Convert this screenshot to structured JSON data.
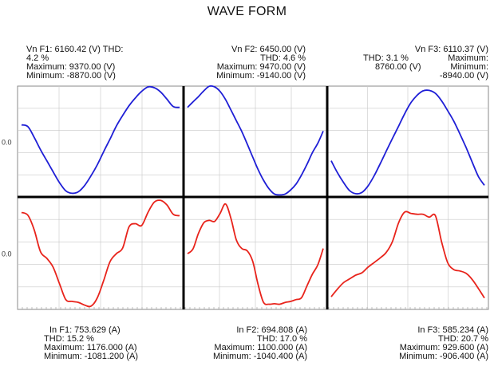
{
  "title": "WAVE FORM",
  "voltage": [
    {
      "label_line1": "Vn F1: 6160.42 (V) THD:",
      "label_line2": "4.2 %",
      "max_line": "Maximum: 9370.00 (V)",
      "min_line": "Minimum: -8870.00 (V)"
    },
    {
      "label_line1": "Vn F2: 6450.00 (V)",
      "label_line2": "THD: 4.6 %",
      "max_line": "Maximum: 9470.00 (V)",
      "min_line": "Minimum: -9140.00 (V)"
    },
    {
      "label_line1": "Vn F3: 6110.37 (V)",
      "label_line2a": "THD: 3.1 %",
      "label_line2b": "Maximum:",
      "label_line3a": "8760.00 (V)",
      "label_line3b": "Minimum:",
      "min_line": "-8940.00 (V)"
    }
  ],
  "current": [
    {
      "label_line1": "In F1: 753.629 (A)",
      "label_line2": "THD: 15.2 %",
      "max_line": "Maximum: 1176.000 (A)",
      "min_line": "Minimum: -1081.200 (A)"
    },
    {
      "label_line1": "In F2: 694.808 (A)",
      "label_line2": "THD: 17.0 %",
      "max_line": "Maximum: 1100.000 (A)",
      "min_line": "Minimum: -1040.400 (A)"
    },
    {
      "label_line1": "In F3: 585.234 (A)",
      "label_line2": "THD: 20.7 %",
      "max_line": "Maximum: 929.600 (A)",
      "min_line": "Minimum: -906.400 (A)"
    }
  ],
  "axis": {
    "y_tick_voltage": "0.0",
    "y_tick_current": "0.0"
  },
  "colors": {
    "voltage": "#1f1fd6",
    "current": "#e8231b",
    "grid": "#c8c8c8",
    "divider": "#000000"
  },
  "chart_data": [
    {
      "type": "line",
      "name": "voltage",
      "grid": true,
      "ylim": [
        -9500,
        9500
      ],
      "series": [
        {
          "x": [
            0,
            0.04,
            0.08,
            0.12,
            0.16,
            0.2,
            0.24,
            0.28,
            0.32,
            0.36,
            0.4,
            0.44,
            0.48,
            0.52,
            0.56,
            0.6,
            0.64,
            0.68,
            0.72,
            0.76,
            0.8,
            0.84,
            0.88,
            0.92,
            0.96,
            1.0
          ],
          "values": [
            2860,
            2560,
            720,
            -1410,
            -3300,
            -5200,
            -7040,
            -8450,
            -8870,
            -8600,
            -7500,
            -5850,
            -3960,
            -1710,
            430,
            2650,
            4470,
            6130,
            7470,
            8600,
            9370,
            9230,
            8500,
            7260,
            6000,
            5850
          ]
        },
        {
          "x": [
            0,
            0.04,
            0.08,
            0.12,
            0.16,
            0.2,
            0.24,
            0.28,
            0.32,
            0.36,
            0.4,
            0.44,
            0.48,
            0.52,
            0.56,
            0.6,
            0.64,
            0.68,
            0.72,
            0.76,
            0.8,
            0.84,
            0.88,
            0.92,
            0.96,
            1.0
          ],
          "values": [
            5850,
            6800,
            7700,
            8700,
            9470,
            9370,
            8580,
            7200,
            5400,
            3560,
            1710,
            -430,
            -2640,
            -4800,
            -6630,
            -8080,
            -9000,
            -9140,
            -9000,
            -8300,
            -7280,
            -5740,
            -3920,
            -1920,
            -300,
            1800
          ]
        },
        {
          "x": [
            0,
            0.04,
            0.08,
            0.12,
            0.16,
            0.2,
            0.24,
            0.28,
            0.32,
            0.36,
            0.4,
            0.44,
            0.48,
            0.52,
            0.56,
            0.6,
            0.64,
            0.68,
            0.72,
            0.76,
            0.8,
            0.84,
            0.88,
            0.92,
            0.96,
            1.0
          ],
          "values": [
            -3300,
            -5300,
            -7000,
            -8400,
            -8940,
            -8730,
            -7630,
            -5880,
            -3800,
            -1600,
            550,
            2650,
            4800,
            6650,
            7920,
            8700,
            8760,
            8250,
            7000,
            5300,
            3500,
            1300,
            -1000,
            -3500,
            -5960,
            -7500
          ]
        }
      ]
    },
    {
      "type": "line",
      "name": "current",
      "grid": true,
      "ylim": [
        -1150,
        1250
      ],
      "series": [
        {
          "x": [
            0,
            0.04,
            0.08,
            0.12,
            0.16,
            0.2,
            0.24,
            0.28,
            0.32,
            0.36,
            0.4,
            0.44,
            0.48,
            0.52,
            0.56,
            0.6,
            0.64,
            0.68,
            0.72,
            0.76,
            0.8,
            0.84,
            0.88,
            0.92,
            0.96,
            1.0
          ],
          "values": [
            920,
            860,
            550,
            80,
            -60,
            -250,
            -600,
            -940,
            -980,
            -1000,
            -1060,
            -1081,
            -900,
            -530,
            -130,
            40,
            160,
            610,
            680,
            640,
            920,
            1140,
            1176,
            1080,
            880,
            850
          ]
        },
        {
          "x": [
            0,
            0.04,
            0.08,
            0.12,
            0.16,
            0.2,
            0.24,
            0.28,
            0.32,
            0.36,
            0.4,
            0.44,
            0.48,
            0.52,
            0.56,
            0.6,
            0.64,
            0.68,
            0.72,
            0.76,
            0.8,
            0.84,
            0.88,
            0.92,
            0.96,
            1.0
          ],
          "values": [
            40,
            140,
            470,
            700,
            750,
            730,
            900,
            1100,
            790,
            330,
            150,
            100,
            -120,
            -620,
            -1000,
            -1040,
            -1030,
            -1040,
            -1000,
            -980,
            -940,
            -900,
            -650,
            -400,
            -200,
            150
          ]
        },
        {
          "x": [
            0,
            0.04,
            0.08,
            0.12,
            0.16,
            0.2,
            0.24,
            0.28,
            0.32,
            0.36,
            0.4,
            0.44,
            0.48,
            0.52,
            0.56,
            0.6,
            0.64,
            0.68,
            0.72,
            0.76,
            0.8,
            0.84,
            0.88,
            0.92,
            0.96,
            1.0
          ],
          "values": [
            -880,
            -720,
            -580,
            -500,
            -420,
            -370,
            -250,
            -150,
            -50,
            70,
            300,
            700,
            929,
            900,
            880,
            880,
            820,
            850,
            300,
            -150,
            -300,
            -330,
            -380,
            -510,
            -700,
            -906
          ]
        }
      ]
    }
  ]
}
